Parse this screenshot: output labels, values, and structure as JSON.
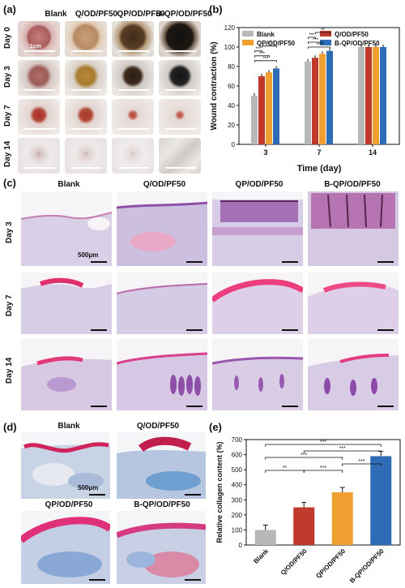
{
  "panels": {
    "a": "(a)",
    "b": "(b)",
    "c": "(c)",
    "d": "(d)",
    "e": "(e)"
  },
  "photo_grid": {
    "columns": [
      "Blank",
      "Q/OD/PF50",
      "QP/OD/PF50",
      "B-QP/OD/PF50"
    ],
    "rows": [
      "Day 0",
      "Day 3",
      "Day 7",
      "Day 14"
    ],
    "scale_label": "1cm"
  },
  "histology_grid": {
    "columns": [
      "Blank",
      "Q/OD/PF50",
      "QP/OD/PF50",
      "B-QP/OD/PF50"
    ],
    "rows": [
      "Day 3",
      "Day 7",
      "Day 14"
    ],
    "scale_label": "500μm"
  },
  "collagen_grid": {
    "labels": [
      "Blank",
      "Q/OD/PF50",
      "QP/OD/PF50",
      "B-QP/OD/PF50"
    ],
    "scale_label": "500μm"
  },
  "chart_data": [
    {
      "id": "b",
      "type": "bar",
      "ylabel": "Wound contraction (%)",
      "xlabel": "Time (day)",
      "categories": [
        "3",
        "7",
        "14"
      ],
      "ylim": [
        0,
        120
      ],
      "yticks": [
        0,
        20,
        40,
        60,
        80,
        100,
        120
      ],
      "legend_position": "top",
      "series": [
        {
          "name": "Blank",
          "color": "#b8b8b8",
          "values": [
            50,
            85,
            100
          ]
        },
        {
          "name": "Q/OD/PF50",
          "color": "#c0392b",
          "values": [
            70,
            89,
            100
          ]
        },
        {
          "name": "QP/OD/PF50",
          "color": "#f0a030",
          "values": [
            74,
            93,
            100
          ]
        },
        {
          "name": "B-QP/OD/PF50",
          "color": "#2e6db5",
          "values": [
            78,
            96,
            100
          ]
        }
      ],
      "significance": [
        "***",
        "***",
        "***",
        "**",
        "***",
        "***",
        "***",
        "**"
      ]
    },
    {
      "id": "e",
      "type": "bar",
      "ylabel": "Relative collagen content (%)",
      "categories": [
        "Blank",
        "Q/OD/PF50",
        "QP/OD/PF50",
        "B-QP/OD/PF50"
      ],
      "values": [
        100,
        250,
        350,
        590
      ],
      "colors": [
        "#b8b8b8",
        "#c0392b",
        "#f0a030",
        "#2e6db5"
      ],
      "ylim": [
        0,
        700
      ],
      "yticks": [
        0,
        100,
        200,
        300,
        400,
        500,
        600,
        700
      ],
      "significance": [
        "***",
        "***",
        "***",
        "***",
        "**",
        "***"
      ]
    }
  ]
}
